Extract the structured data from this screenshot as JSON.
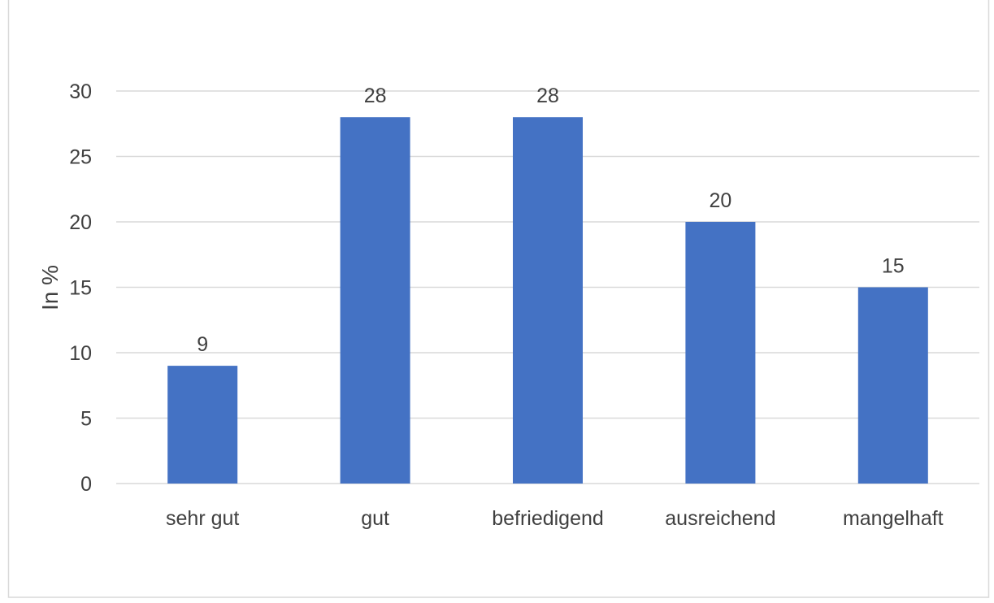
{
  "chart_data": {
    "type": "bar",
    "title": "",
    "xlabel": "",
    "ylabel": "In %",
    "categories": [
      "sehr gut",
      "gut",
      "befriedigend",
      "ausreichend",
      "mangelhaft"
    ],
    "values": [
      9,
      28,
      28,
      20,
      15
    ],
    "data_labels": [
      "9",
      "28",
      "28",
      "20",
      "15"
    ],
    "ylim": [
      0,
      30
    ],
    "yticks": [
      0,
      5,
      10,
      15,
      20,
      25,
      30
    ],
    "grid": true,
    "legend": "none",
    "colors": {
      "bar": "#4472C4",
      "grid": "#D9D9D9",
      "text": "#404040",
      "border": "#D9D9D9"
    }
  }
}
